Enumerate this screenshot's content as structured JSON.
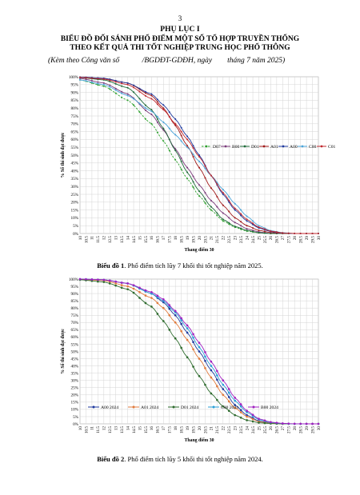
{
  "page_number": "3",
  "heading": {
    "line1": "PHỤ LỤC I",
    "line2": "BIỂU ĐỒ ĐỐI SÁNH PHỔ ĐIỂM MỘT SỐ TỔ HỢP TRUYỀN THỐNG",
    "line3": "THEO KẾT QUẢ THI TỐT NGHIỆP TRUNG HỌC PHỔ THÔNG",
    "note": "(Kèm theo Công văn số            /BGDĐT-GDĐH, ngày        tháng 7 năm 2025)"
  },
  "captions": [
    {
      "label": "Biểu đồ 1",
      "text": ". Phổ điểm tích lũy 7 khối thi tốt nghiệp năm 2025."
    },
    {
      "label": "Biểu đồ 2",
      "text": ". Phổ điểm tích lũy 5 khối thi tốt nghiệp năm 2024."
    }
  ],
  "chart_data": [
    {
      "type": "line",
      "ylabel": "% Số thí sinh đạt được",
      "xlabel": "Thang điểm 30",
      "xlim": [
        10,
        30
      ],
      "ylim": [
        0,
        100
      ],
      "x_ticks": [
        "10",
        "10.5",
        "11",
        "11.5",
        "12",
        "12.5",
        "13",
        "13.5",
        "14",
        "14.5",
        "15",
        "15.5",
        "16",
        "16.5",
        "17",
        "17.5",
        "18",
        "18.5",
        "19",
        "19.5",
        "20",
        "20.5",
        "21",
        "21.5",
        "22",
        "22.5",
        "23",
        "23.5",
        "24",
        "24.5",
        "25",
        "25.5",
        "26",
        "26.5",
        "27",
        "27.5",
        "28",
        "28.5",
        "29",
        "29.5",
        "30"
      ],
      "y_ticks": [
        "0%",
        "5%",
        "10%",
        "15%",
        "20%",
        "25%",
        "30%",
        "35%",
        "40%",
        "45%",
        "50%",
        "55%",
        "60%",
        "65%",
        "70%",
        "75%",
        "80%",
        "85%",
        "90%",
        "95%",
        "100%"
      ],
      "legend_position": "right",
      "grid": true,
      "series": [
        {
          "name": "D07",
          "color": "#2ca02c",
          "dashed": true,
          "values": [
            [
              10,
              98
            ],
            [
              12,
              94
            ],
            [
              14,
              85
            ],
            [
              16,
              70
            ],
            [
              17,
              59
            ],
            [
              18,
              47
            ],
            [
              19,
              35
            ],
            [
              20,
              24
            ],
            [
              21,
              15
            ],
            [
              22,
              8
            ],
            [
              23,
              4
            ],
            [
              24,
              1.5
            ],
            [
              25,
              0.5
            ],
            [
              26,
              0
            ],
            [
              30,
              0
            ]
          ]
        },
        {
          "name": "B00",
          "color": "#7a3a7a",
          "dashed": false,
          "values": [
            [
              10,
              99
            ],
            [
              12,
              96
            ],
            [
              14,
              89
            ],
            [
              16,
              76
            ],
            [
              17,
              66
            ],
            [
              18,
              54
            ],
            [
              19,
              42
            ],
            [
              20,
              31
            ],
            [
              21,
              21
            ],
            [
              22,
              13
            ],
            [
              23,
              7
            ],
            [
              24,
              3
            ],
            [
              25,
              1
            ],
            [
              26,
              0
            ],
            [
              30,
              0
            ]
          ]
        },
        {
          "name": "D01",
          "color": "#1f6b3a",
          "dashed": false,
          "values": [
            [
              10,
              99.5
            ],
            [
              12,
              98
            ],
            [
              14,
              93
            ],
            [
              16,
              79
            ],
            [
              17,
              67
            ],
            [
              18,
              53
            ],
            [
              19,
              39
            ],
            [
              20,
              27
            ],
            [
              21,
              17
            ],
            [
              22,
              9
            ],
            [
              23,
              4.5
            ],
            [
              24,
              2
            ],
            [
              25,
              0.5
            ],
            [
              26,
              0
            ],
            [
              30,
              0
            ]
          ]
        },
        {
          "name": "A01",
          "color": "#a01a1a",
          "dashed": false,
          "values": [
            [
              10,
              99.8
            ],
            [
              12,
              99
            ],
            [
              14,
              96
            ],
            [
              16,
              88
            ],
            [
              17,
              80
            ],
            [
              18,
              69
            ],
            [
              19,
              56
            ],
            [
              20,
              42
            ],
            [
              21,
              29
            ],
            [
              22,
              18
            ],
            [
              23,
              10
            ],
            [
              24,
              5
            ],
            [
              25,
              2
            ],
            [
              26,
              0.6
            ],
            [
              27,
              0.1
            ],
            [
              30,
              0
            ]
          ]
        },
        {
          "name": "A00",
          "color": "#1f3a9e",
          "dashed": false,
          "values": [
            [
              10,
              99.8
            ],
            [
              12,
              99
            ],
            [
              14,
              96
            ],
            [
              16,
              89
            ],
            [
              17,
              82
            ],
            [
              18,
              73
            ],
            [
              19,
              62
            ],
            [
              20,
              50
            ],
            [
              21,
              37
            ],
            [
              22,
              25
            ],
            [
              23,
              15
            ],
            [
              24,
              8
            ],
            [
              25,
              3.5
            ],
            [
              26,
              1.2
            ],
            [
              27,
              0.3
            ],
            [
              28,
              0
            ],
            [
              30,
              0
            ]
          ]
        },
        {
          "name": "C00",
          "color": "#4aa3d8",
          "dashed": false,
          "values": [
            [
              10,
              98
            ],
            [
              12,
              95
            ],
            [
              14,
              88
            ],
            [
              16,
              78
            ],
            [
              17,
              71
            ],
            [
              18,
              63
            ],
            [
              19,
              55
            ],
            [
              20,
              46
            ],
            [
              21,
              37
            ],
            [
              22,
              28
            ],
            [
              23,
              19
            ],
            [
              24,
              11
            ],
            [
              25,
              5
            ],
            [
              26,
              1.8
            ],
            [
              27,
              0.5
            ],
            [
              28,
              0
            ],
            [
              30,
              0
            ]
          ]
        },
        {
          "name": "C01",
          "color": "#c0282e",
          "dashed": false,
          "values": [
            [
              10,
              99.6
            ],
            [
              12,
              98.5
            ],
            [
              14,
              95
            ],
            [
              16,
              86
            ],
            [
              17,
              79
            ],
            [
              18,
              70
            ],
            [
              19,
              60
            ],
            [
              20,
              49
            ],
            [
              21,
              37
            ],
            [
              22,
              26
            ],
            [
              23,
              16
            ],
            [
              24,
              9
            ],
            [
              25,
              4
            ],
            [
              26,
              1.5
            ],
            [
              27,
              0.4
            ],
            [
              28,
              0
            ],
            [
              30,
              0
            ]
          ]
        }
      ]
    },
    {
      "type": "line",
      "ylabel": "% Số thí sinh đạt được",
      "xlabel": "Thang điểm 30",
      "xlim": [
        10,
        30
      ],
      "ylim": [
        0,
        100
      ],
      "x_ticks": [
        "10",
        "10.5",
        "11",
        "11.5",
        "12",
        "12.5",
        "13",
        "13.5",
        "14",
        "14.5",
        "15",
        "15.5",
        "16",
        "16.5",
        "17",
        "17.5",
        "18",
        "18.5",
        "19",
        "19.5",
        "20",
        "20.5",
        "21",
        "21.5",
        "22",
        "22.5",
        "23",
        "23.5",
        "24",
        "24.5",
        "25",
        "25.5",
        "26",
        "26.5",
        "27",
        "27.5",
        "28",
        "28.5",
        "29",
        "29.5",
        "30"
      ],
      "y_ticks": [
        "0%",
        "5%",
        "10%",
        "15%",
        "20%",
        "25%",
        "30%",
        "35%",
        "40%",
        "45%",
        "50%",
        "55%",
        "60%",
        "65%",
        "70%",
        "75%",
        "80%",
        "85%",
        "90%",
        "95%",
        "100%"
      ],
      "legend_position": "bottom",
      "grid": true,
      "series": [
        {
          "name": "A00 2024",
          "color": "#1f3a9e",
          "values": [
            [
              10,
              100
            ],
            [
              12,
              99.5
            ],
            [
              14,
              97
            ],
            [
              16,
              90
            ],
            [
              17,
              84
            ],
            [
              18,
              75
            ],
            [
              19,
              63
            ],
            [
              20,
              50
            ],
            [
              21,
              37
            ],
            [
              22,
              24
            ],
            [
              23,
              13
            ],
            [
              24,
              6
            ],
            [
              25,
              2
            ],
            [
              26,
              0.5
            ],
            [
              27,
              0.1
            ],
            [
              28,
              0
            ],
            [
              30,
              0
            ]
          ]
        },
        {
          "name": "A01 2024",
          "color": "#e07a3c",
          "values": [
            [
              10,
              99.8
            ],
            [
              12,
              99
            ],
            [
              14,
              95
            ],
            [
              16,
              87
            ],
            [
              17,
              80
            ],
            [
              18,
              70
            ],
            [
              19,
              58
            ],
            [
              20,
              45
            ],
            [
              21,
              32
            ],
            [
              22,
              20
            ],
            [
              23,
              11
            ],
            [
              24,
              5
            ],
            [
              25,
              1.5
            ],
            [
              26,
              0.4
            ],
            [
              27,
              0
            ],
            [
              30,
              0
            ]
          ]
        },
        {
          "name": "D01 2024",
          "color": "#2e6b2e",
          "values": [
            [
              10,
              99.5
            ],
            [
              12,
              98
            ],
            [
              14,
              93
            ],
            [
              16,
              81
            ],
            [
              17,
              71
            ],
            [
              18,
              59
            ],
            [
              19,
              46
            ],
            [
              20,
              33
            ],
            [
              21,
              21
            ],
            [
              22,
              12
            ],
            [
              23,
              6
            ],
            [
              24,
              2.5
            ],
            [
              25,
              0.8
            ],
            [
              26,
              0.2
            ],
            [
              27,
              0
            ],
            [
              30,
              0
            ]
          ]
        },
        {
          "name": "C00 2024",
          "color": "#2a9fd6",
          "values": [
            [
              10,
              100
            ],
            [
              12,
              99.5
            ],
            [
              14,
              97
            ],
            [
              16,
              90
            ],
            [
              17,
              85
            ],
            [
              18,
              77
            ],
            [
              19,
              66
            ],
            [
              20,
              53
            ],
            [
              21,
              40
            ],
            [
              22,
              27
            ],
            [
              23,
              16
            ],
            [
              24,
              8
            ],
            [
              25,
              3
            ],
            [
              26,
              1
            ],
            [
              27,
              0.2
            ],
            [
              28,
              0
            ],
            [
              30,
              0
            ]
          ]
        },
        {
          "name": "B00 2024",
          "color": "#a020c0",
          "values": [
            [
              10,
              100
            ],
            [
              12,
              99.5
            ],
            [
              14,
              97
            ],
            [
              16,
              91
            ],
            [
              17,
              86
            ],
            [
              18,
              78
            ],
            [
              19,
              68
            ],
            [
              20,
              56
            ],
            [
              21,
              43
            ],
            [
              22,
              30
            ],
            [
              23,
              18
            ],
            [
              24,
              9
            ],
            [
              25,
              3.5
            ],
            [
              26,
              1.2
            ],
            [
              27,
              0.3
            ],
            [
              28,
              0.05
            ],
            [
              30,
              0
            ]
          ]
        }
      ]
    }
  ]
}
